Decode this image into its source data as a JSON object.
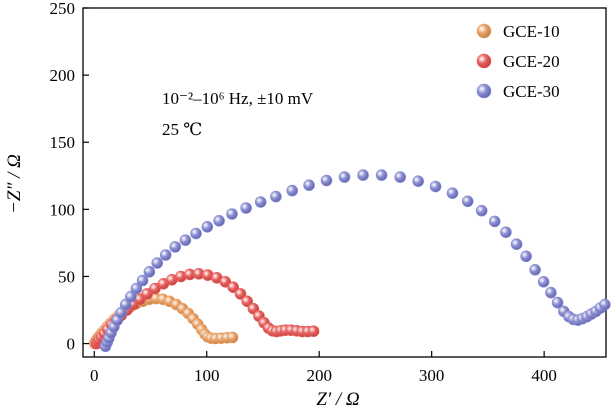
{
  "chart_data": {
    "type": "scatter",
    "xlabel": "Z′ / Ω",
    "ylabel": "−Z″ / Ω",
    "xlim": [
      -10,
      455
    ],
    "ylim": [
      -10,
      250
    ],
    "xticks": [
      0,
      100,
      200,
      300,
      400
    ],
    "yticks": [
      0,
      50,
      100,
      150,
      200,
      250
    ],
    "grid": false,
    "legend_position": "top-right",
    "annotations": [
      "10⁻²–10⁶ Hz, ±10 mV",
      "25 ℃"
    ],
    "series": [
      {
        "name": "GCE-10",
        "color": "#E8A36A",
        "points": [
          [
            0.5,
            0.0
          ],
          [
            0.7,
            0.5
          ],
          [
            1.0,
            1.0
          ],
          [
            1.3,
            1.5
          ],
          [
            1.8,
            2.0
          ],
          [
            2.4,
            3.0
          ],
          [
            3.2,
            4.0
          ],
          [
            4.2,
            5.0
          ],
          [
            5.5,
            6.5
          ],
          [
            7.0,
            8.0
          ],
          [
            9.0,
            10.0
          ],
          [
            11.5,
            12.5
          ],
          [
            14.5,
            15.0
          ],
          [
            18.0,
            18.0
          ],
          [
            22.0,
            21.0
          ],
          [
            26.5,
            24.0
          ],
          [
            31.5,
            27.0
          ],
          [
            37.0,
            29.5
          ],
          [
            43.0,
            31.5
          ],
          [
            49.0,
            33.0
          ],
          [
            55.0,
            33.5
          ],
          [
            61.0,
            33.0
          ],
          [
            67.0,
            31.5
          ],
          [
            73.0,
            29.0
          ],
          [
            78.5,
            26.0
          ],
          [
            83.5,
            22.5
          ],
          [
            88.0,
            18.5
          ],
          [
            92.0,
            14.5
          ],
          [
            95.5,
            10.5
          ],
          [
            98.5,
            7.0
          ],
          [
            101.0,
            5.0
          ],
          [
            104.0,
            4.0
          ],
          [
            108.0,
            3.8
          ],
          [
            113.0,
            4.0
          ],
          [
            118.0,
            4.3
          ],
          [
            123.0,
            4.6
          ]
        ]
      },
      {
        "name": "GCE-20",
        "color": "#E8625F",
        "points": [
          [
            2.0,
            0.0
          ],
          [
            3.0,
            1.5
          ],
          [
            4.5,
            3.0
          ],
          [
            6.5,
            5.0
          ],
          [
            9.0,
            7.5
          ],
          [
            12.0,
            10.5
          ],
          [
            15.5,
            14.0
          ],
          [
            19.5,
            17.5
          ],
          [
            24.0,
            21.0
          ],
          [
            29.0,
            25.0
          ],
          [
            34.5,
            29.0
          ],
          [
            40.5,
            33.0
          ],
          [
            47.0,
            37.0
          ],
          [
            54.0,
            41.0
          ],
          [
            61.5,
            44.5
          ],
          [
            69.0,
            47.5
          ],
          [
            77.0,
            50.0
          ],
          [
            85.0,
            51.5
          ],
          [
            93.0,
            52.0
          ],
          [
            101.0,
            51.0
          ],
          [
            109.0,
            49.0
          ],
          [
            116.5,
            46.0
          ],
          [
            123.5,
            42.0
          ],
          [
            130.0,
            37.0
          ],
          [
            136.0,
            31.5
          ],
          [
            141.5,
            26.0
          ],
          [
            146.5,
            20.5
          ],
          [
            151.0,
            15.5
          ],
          [
            155.0,
            11.5
          ],
          [
            158.5,
            9.5
          ],
          [
            162.0,
            9.0
          ],
          [
            166.0,
            9.5
          ],
          [
            170.0,
            10.0
          ],
          [
            175.0,
            10.0
          ],
          [
            180.0,
            9.5
          ],
          [
            185.0,
            9.0
          ],
          [
            190.0,
            9.0
          ],
          [
            195.0,
            9.2
          ]
        ]
      },
      {
        "name": "GCE-30",
        "color": "#8C8FD3",
        "points": [
          [
            10.0,
            -2.0
          ],
          [
            11.5,
            1.0
          ],
          [
            13.0,
            4.0
          ],
          [
            15.0,
            8.0
          ],
          [
            17.5,
            12.5
          ],
          [
            20.5,
            17.5
          ],
          [
            24.0,
            23.0
          ],
          [
            28.0,
            29.0
          ],
          [
            32.5,
            35.0
          ],
          [
            37.5,
            41.0
          ],
          [
            43.0,
            47.0
          ],
          [
            49.0,
            53.5
          ],
          [
            56.0,
            60.0
          ],
          [
            63.5,
            66.0
          ],
          [
            72.0,
            72.0
          ],
          [
            81.0,
            77.0
          ],
          [
            90.5,
            82.0
          ],
          [
            100.5,
            87.0
          ],
          [
            111.0,
            91.5
          ],
          [
            122.5,
            96.5
          ],
          [
            135.0,
            101.0
          ],
          [
            148.0,
            105.5
          ],
          [
            161.5,
            109.5
          ],
          [
            176.0,
            114.0
          ],
          [
            191.0,
            118.0
          ],
          [
            206.5,
            121.5
          ],
          [
            222.5,
            124.0
          ],
          [
            239.0,
            125.5
          ],
          [
            255.5,
            125.5
          ],
          [
            272.0,
            124.0
          ],
          [
            288.0,
            121.0
          ],
          [
            303.5,
            117.0
          ],
          [
            318.5,
            112.0
          ],
          [
            332.0,
            106.0
          ],
          [
            344.5,
            99.0
          ],
          [
            356.0,
            91.0
          ],
          [
            366.0,
            83.0
          ],
          [
            375.5,
            74.0
          ],
          [
            384.0,
            65.0
          ],
          [
            392.0,
            55.0
          ],
          [
            399.5,
            46.0
          ],
          [
            406.0,
            38.0
          ],
          [
            412.0,
            30.5
          ],
          [
            417.5,
            24.0
          ],
          [
            422.0,
            20.0
          ],
          [
            426.0,
            18.0
          ],
          [
            430.0,
            17.5
          ],
          [
            434.0,
            18.5
          ],
          [
            438.0,
            20.0
          ],
          [
            442.0,
            22.0
          ],
          [
            446.0,
            24.0
          ],
          [
            450.0,
            26.5
          ],
          [
            454.0,
            29.0
          ]
        ]
      }
    ]
  }
}
